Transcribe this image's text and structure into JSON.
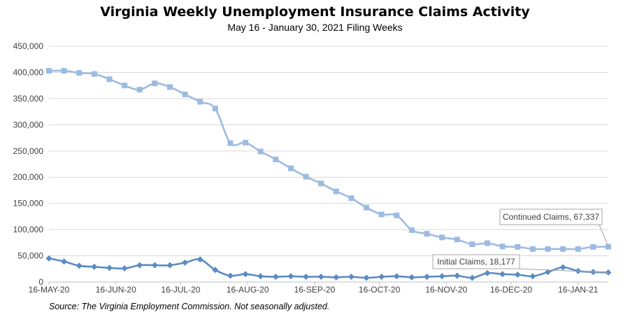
{
  "chart_data": {
    "type": "line",
    "title": "Virginia Weekly Unemployment Insurance Claims Activity",
    "subtitle": "May 16 - January 30, 2021 Filing Weeks",
    "x_tick_labels": [
      "16-MAY-20",
      "16-JUN-20",
      "16-JUL-20",
      "16-AUG-20",
      "16-SEP-20",
      "16-OCT-20",
      "16-NOV-20",
      "16-DEC-20",
      "16-JAN-21"
    ],
    "x_tick_days": [
      0,
      31,
      61,
      92,
      123,
      153,
      184,
      214,
      245
    ],
    "x_range_days": [
      0,
      259
    ],
    "ylim": [
      0,
      450000
    ],
    "yticks": [
      0,
      50000,
      100000,
      150000,
      200000,
      250000,
      300000,
      350000,
      400000,
      450000
    ],
    "ytick_labels": [
      "0",
      "50,000",
      "100,000",
      "150,000",
      "200,000",
      "250,000",
      "300,000",
      "350,000",
      "400,000",
      "450,000"
    ],
    "grid": true,
    "series": [
      {
        "name": "Continued Claims",
        "color": "#9dbbe0",
        "marker": "square",
        "callout": "Continued Claims, 67,337",
        "values": [
          403000,
          403000,
          399000,
          397000,
          387000,
          375000,
          367000,
          379000,
          372000,
          358000,
          344000,
          331000,
          265000,
          266000,
          249000,
          234000,
          217000,
          201000,
          188000,
          173000,
          160000,
          142000,
          129000,
          127000,
          99000,
          92000,
          85000,
          81000,
          72000,
          74000,
          68000,
          67000,
          63000,
          63000,
          63000,
          63000,
          67000,
          67337
        ]
      },
      {
        "name": "Initial Claims",
        "color": "#5b8cc3",
        "marker": "diamond",
        "callout": "Initial Claims, 18,177",
        "values": [
          45000,
          39000,
          31000,
          29000,
          27000,
          26000,
          32000,
          32000,
          32000,
          37000,
          43000,
          23000,
          12000,
          15000,
          11000,
          10000,
          11000,
          10000,
          10000,
          9000,
          10000,
          8000,
          10000,
          11000,
          9000,
          10000,
          11000,
          12000,
          8000,
          17000,
          15000,
          14000,
          11000,
          19000,
          28000,
          21000,
          19000,
          18177
        ]
      }
    ],
    "source": "Source: The Virginia Employment Commission. Not seasonally adjusted."
  }
}
